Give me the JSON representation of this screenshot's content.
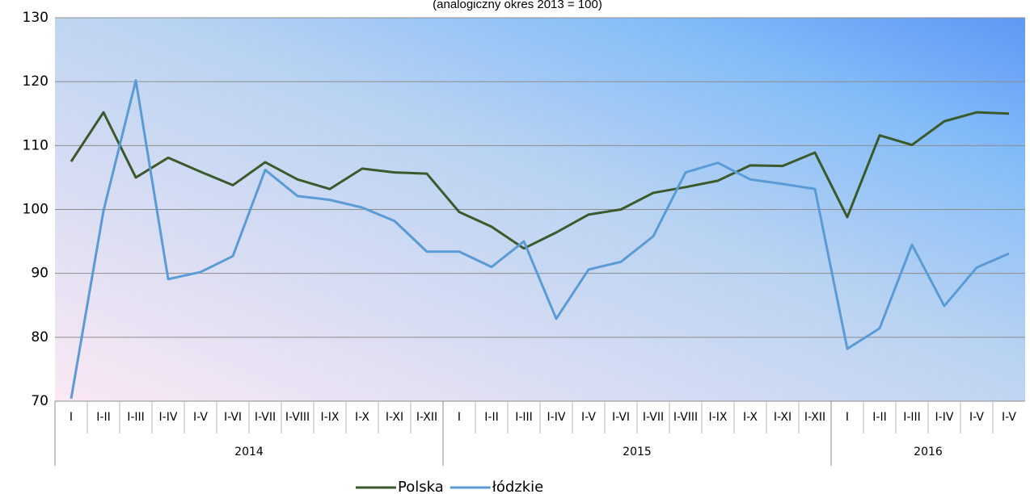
{
  "chart_data": {
    "type": "line",
    "subtitle": "(analogiczny okres 2013 = 100)",
    "categories": [
      "I",
      "I-II",
      "I-III",
      "I-IV",
      "I-V",
      "I-VI",
      "I-VII",
      "I-VIII",
      "I-IX",
      "I-X",
      "I-XI",
      "I-XII",
      "I",
      "I-II",
      "I-III",
      "I-IV",
      "I-V",
      "I-VI",
      "I-VII",
      "I-VIII",
      "I-IX",
      "I-X",
      "I-XI",
      "I-XII",
      "I",
      "I-II",
      "I-III",
      "I-IV",
      "I-V",
      "I-V"
    ],
    "groups": [
      {
        "label": "2014",
        "size": 12
      },
      {
        "label": "2015",
        "size": 12
      },
      {
        "label": "2016",
        "size": 6
      }
    ],
    "series": [
      {
        "name": "Polska",
        "color": "#3b5a2c",
        "values": [
          107.5,
          115.2,
          105.0,
          108.1,
          105.9,
          103.8,
          107.4,
          104.7,
          103.2,
          106.4,
          105.8,
          105.6,
          99.6,
          97.3,
          93.9,
          96.4,
          99.2,
          100.0,
          102.6,
          103.5,
          104.5,
          106.9,
          106.8,
          108.9,
          98.8,
          111.6,
          110.1,
          113.8,
          115.2,
          115.0
        ]
      },
      {
        "name": "łódzkie",
        "color": "#5b9bd5",
        "values": [
          70.4,
          99.8,
          120.2,
          89.1,
          90.2,
          92.7,
          106.2,
          102.1,
          101.5,
          100.3,
          98.2,
          93.4,
          93.4,
          91.0,
          95.0,
          82.9,
          90.6,
          91.8,
          95.8,
          105.8,
          107.3,
          104.7,
          104.0,
          103.2,
          78.2,
          81.4,
          94.5,
          84.9,
          90.9,
          93.1
        ]
      }
    ],
    "ylim": [
      70,
      130
    ],
    "yticks": [
      70,
      80,
      90,
      100,
      110,
      120,
      130
    ],
    "grid": true,
    "legend": "bottom"
  }
}
